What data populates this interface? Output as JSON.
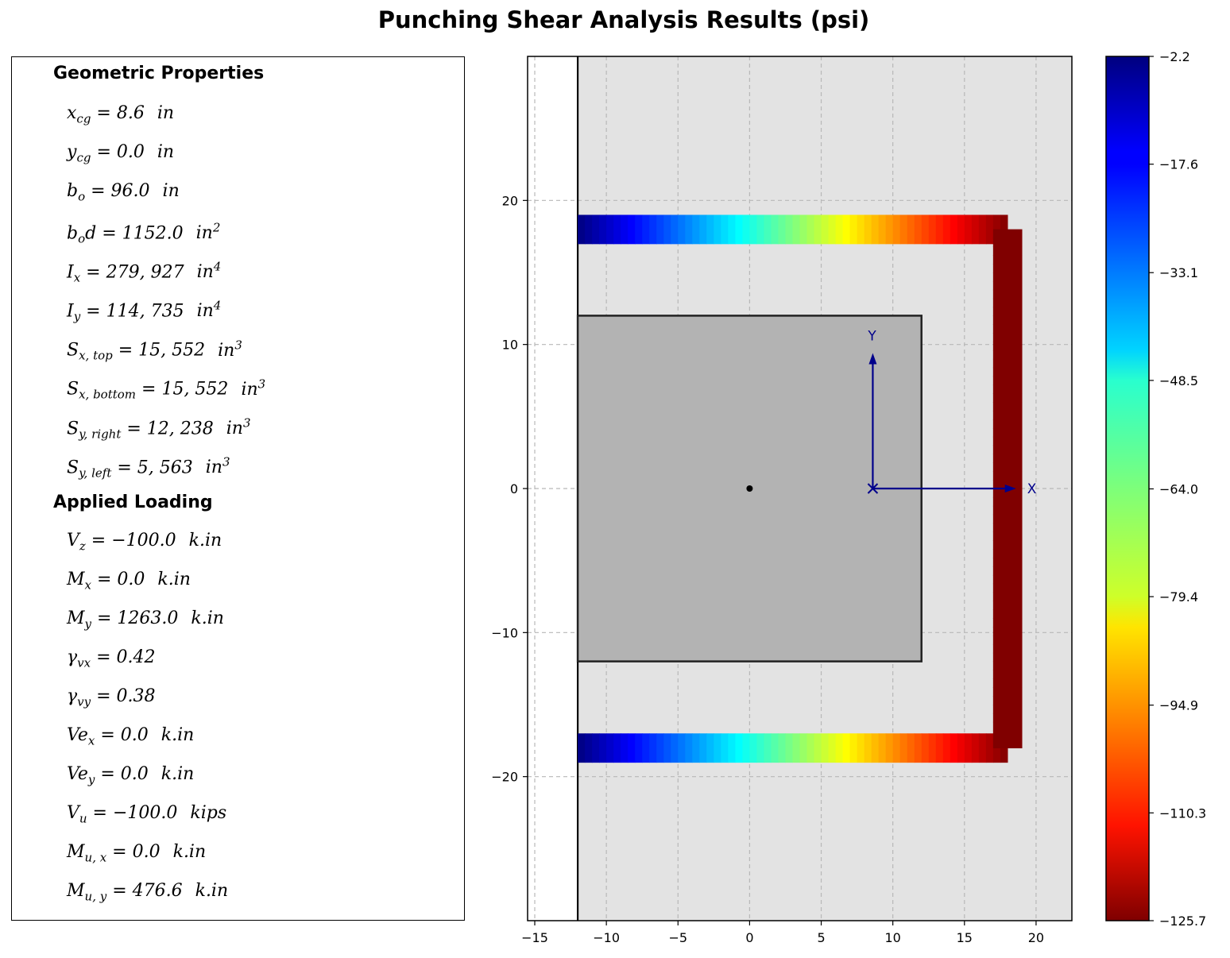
{
  "title": "Punching Shear Analysis Results (psi)",
  "panel": {
    "geometric_heading": "Geometric Properties",
    "geometric": [
      {
        "sym": "x",
        "sub": "cg",
        "val": "8.6",
        "unit": "in",
        "unit_sup": ""
      },
      {
        "sym": "y",
        "sub": "cg",
        "val": "0.0",
        "unit": "in",
        "unit_sup": ""
      },
      {
        "sym": "b",
        "sub": "o",
        "val": "96.0",
        "unit": "in",
        "unit_sup": ""
      },
      {
        "sym": "b",
        "sub": "o",
        "sym2": "d",
        "val": "1152.0",
        "unit": "in",
        "unit_sup": "2"
      },
      {
        "sym": "I",
        "sub": "x",
        "val": "279, 927",
        "unit": "in",
        "unit_sup": "4"
      },
      {
        "sym": "I",
        "sub": "y",
        "val": "114, 735",
        "unit": "in",
        "unit_sup": "4"
      },
      {
        "sym": "S",
        "sub": "x, top",
        "val": "15, 552",
        "unit": "in",
        "unit_sup": "3"
      },
      {
        "sym": "S",
        "sub": "x, bottom",
        "val": "15, 552",
        "unit": "in",
        "unit_sup": "3"
      },
      {
        "sym": "S",
        "sub": "y, right",
        "val": "12, 238",
        "unit": "in",
        "unit_sup": "3"
      },
      {
        "sym": "S",
        "sub": "y, left",
        "val": "5, 563",
        "unit": "in",
        "unit_sup": "3"
      }
    ],
    "loading_heading": "Applied Loading",
    "loading": [
      {
        "sym": "V",
        "sub": "z",
        "val": "−100.0",
        "unit": "k.in",
        "unit_sup": ""
      },
      {
        "sym": "M",
        "sub": "x",
        "val": "0.0",
        "unit": "k.in",
        "unit_sup": ""
      },
      {
        "sym": "M",
        "sub": "y",
        "val": "1263.0",
        "unit": "k.in",
        "unit_sup": ""
      },
      {
        "sym": "γ",
        "sub": "vx",
        "val": "0.42",
        "unit": "",
        "unit_sup": ""
      },
      {
        "sym": "γ",
        "sub": "vy",
        "val": "0.38",
        "unit": "",
        "unit_sup": ""
      },
      {
        "sym": "Ve",
        "sub": "x",
        "val": "0.0",
        "unit": "k.in",
        "unit_sup": ""
      },
      {
        "sym": "Ve",
        "sub": "y",
        "val": "0.0",
        "unit": "k.in",
        "unit_sup": ""
      },
      {
        "sym": "V",
        "sub": "u",
        "val": "−100.0",
        "unit": "kips",
        "unit_sup": ""
      },
      {
        "sym": "M",
        "sub": "u, x",
        "val": "0.0",
        "unit": "k.in",
        "unit_sup": ""
      },
      {
        "sym": "M",
        "sub": "u, y",
        "val": "476.6",
        "unit": "k.in",
        "unit_sup": ""
      }
    ]
  },
  "chart_data": {
    "type": "heatmap",
    "xlim": [
      -15.5,
      22.5
    ],
    "ylim": [
      -30,
      30
    ],
    "xticks": [
      "−15",
      "−10",
      "−5",
      "0",
      "5",
      "10",
      "15",
      "20"
    ],
    "yticks": [
      "−20",
      "−10",
      "0",
      "10",
      "20"
    ],
    "grid": true,
    "background_color": "#e3e3e3",
    "column": {
      "x0": -12,
      "x1": 12,
      "y0": -12,
      "y1": 12,
      "color": "#b3b3b3"
    },
    "free_edge_x": -12,
    "centroid_marker": {
      "x": 0,
      "y": 0
    },
    "local_axes": {
      "origin": [
        8.6,
        0
      ],
      "x_label": "X",
      "y_label": "Y",
      "color": "#00008b"
    },
    "strips": [
      {
        "name": "top",
        "orientation": "horizontal",
        "x0": -12,
        "x1": 18,
        "y0": 17,
        "y1": 19,
        "v_start": -2.2,
        "v_end": -125.7
      },
      {
        "name": "bottom",
        "orientation": "horizontal",
        "x0": -12,
        "x1": 18,
        "y0": -19,
        "y1": -17,
        "v_start": -2.2,
        "v_end": -125.7
      },
      {
        "name": "right",
        "orientation": "vertical",
        "x0": 17,
        "x1": 19,
        "y0": -18,
        "y1": 18,
        "v_start": -125.7,
        "v_end": -125.7
      }
    ],
    "colorbar": {
      "colormap": "jet_r",
      "vmin": -125.7,
      "vmax": -2.2,
      "ticks": [
        "−2.2",
        "−17.6",
        "−33.1",
        "−48.5",
        "−64.0",
        "−79.4",
        "−94.9",
        "−110.3",
        "−125.7"
      ]
    }
  }
}
